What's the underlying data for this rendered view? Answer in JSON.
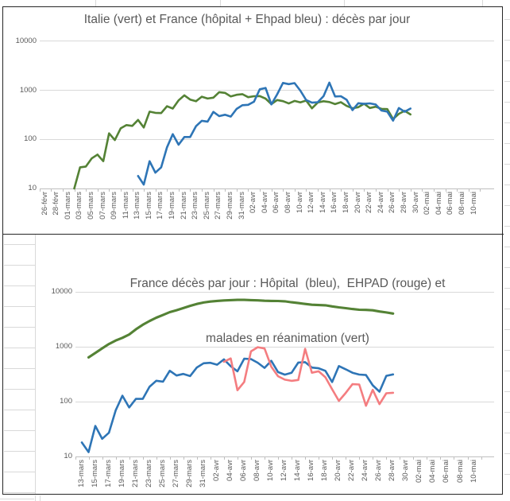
{
  "chart_data": [
    {
      "type": "line",
      "title": "Italie (vert) et France (hôpital + Ehpad bleu) : décès par jour",
      "log_scale": true,
      "ylim": [
        10,
        10000
      ],
      "grid": true,
      "legend": "none (series identified by colors named in title)",
      "y_tick_labels": [
        "10000",
        "1000",
        "100",
        "10"
      ],
      "tick_interval_days": 2,
      "x_tick_labels": [
        "26-févr",
        "28-févr",
        "01-mars",
        "03-mars",
        "05-mars",
        "07-mars",
        "09-mars",
        "11-mars",
        "13-mars",
        "15-mars",
        "17-mars",
        "19-mars",
        "21-mars",
        "23-mars",
        "25-mars",
        "27-mars",
        "29-mars",
        "31-mars",
        "02-avr",
        "04-avr",
        "06-avr",
        "08-avr",
        "10-avr",
        "12-avr",
        "14-avr",
        "16-avr",
        "18-avr",
        "20-avr",
        "22-avr",
        "24-avr",
        "26-avr",
        "28-avr",
        "30-avr",
        "02-mai",
        "04-mai",
        "06-mai",
        "08-mai",
        "10-mai"
      ],
      "series": [
        {
          "name": "Italie décès par jour (vert)",
          "color": "#548235",
          "start_offset_days": 5,
          "values": [
            10,
            27,
            28,
            41,
            49,
            36,
            133,
            97,
            168,
            196,
            189,
            250,
            175,
            368,
            349,
            345,
            475,
            427,
            627,
            793,
            651,
            601,
            743,
            683,
            712,
            919,
            889,
            756,
            812,
            837,
            727,
            760,
            766,
            681,
            525,
            636,
            604,
            542,
            610,
            570,
            619,
            431,
            566,
            602,
            578,
            525,
            575,
            482,
            433,
            454,
            534,
            437,
            464,
            420,
            415,
            260,
            333,
            382,
            323
          ]
        },
        {
          "name": "France hôpital + Ehpad décès par jour (bleu)",
          "color": "#2E75B6",
          "start_offset_days": 16,
          "values": [
            18,
            12,
            36,
            21,
            27,
            69,
            128,
            78,
            112,
            112,
            186,
            240,
            231,
            365,
            299,
            319,
            292,
            418,
            499,
            509,
            588,
            1053,
            1120,
            518,
            833,
            1417,
            1341,
            1408,
            987,
            635,
            561,
            574,
            762,
            1438,
            753,
            761,
            642,
            395,
            547,
            531,
            544,
            516,
            389,
            369,
            242,
            437,
            367,
            427
          ]
        }
      ]
    },
    {
      "type": "line",
      "title_lines": [
        "France décès par jour : Hôpital  (bleu),  EHPAD (rouge) et",
        "malades en réanimation (vert)"
      ],
      "log_scale": true,
      "ylim": [
        10,
        10000
      ],
      "grid": true,
      "legend": "none (series identified by colors named in title)",
      "y_tick_labels": [
        "10000",
        "1000",
        "100",
        "10"
      ],
      "tick_interval_days": 2,
      "x_tick_labels": [
        "13-mars",
        "15-mars",
        "17-mars",
        "19-mars",
        "21-mars",
        "23-mars",
        "25-mars",
        "27-mars",
        "29-mars",
        "31-mars",
        "02-avr",
        "04-avr",
        "06-avr",
        "08-avr",
        "10-avr",
        "12-avr",
        "14-avr",
        "16-avr",
        "18-avr",
        "20-avr",
        "22-avr",
        "24-avr",
        "26-avr",
        "28-avr",
        "30-avr",
        "02-mai",
        "04-mai",
        "06-mai",
        "08-mai",
        "10-mai"
      ],
      "series": [
        {
          "name": "Hôpital décès par jour (bleu)",
          "color": "#2E75B6",
          "start_offset_days": 0,
          "values": [
            18,
            12,
            36,
            21,
            27,
            69,
            128,
            78,
            112,
            112,
            186,
            240,
            231,
            365,
            299,
            319,
            292,
            418,
            499,
            509,
            471,
            588,
            441,
            357,
            605,
            597,
            511,
            412,
            554,
            345,
            310,
            335,
            514,
            524,
            417,
            405,
            364,
            227,
            444,
            387,
            336,
            311,
            305,
            198,
            152,
            295,
            313
          ]
        },
        {
          "name": "EHPAD décès par jour (rouge)",
          "color": "#F47D80",
          "start_offset_days": 21,
          "values": [
            532,
            612,
            161,
            228,
            820,
            981,
            929,
            433,
            290,
            251,
            239,
            248,
            914,
            336,
            356,
            278,
            168,
            103,
            144,
            208,
            205,
            84,
            164,
            90,
            142,
            145
          ]
        },
        {
          "name": "Malades en réanimation (vert)",
          "color": "#548235",
          "start_offset_days": 1,
          "values": [
            640,
            771,
            931,
            1122,
            1297,
            1453,
            1674,
            2080,
            2516,
            2935,
            3375,
            3787,
            4273,
            4632,
            5056,
            5565,
            6017,
            6399,
            6662,
            6838,
            6978,
            7072,
            7131,
            7148,
            7066,
            7004,
            6883,
            6845,
            6821,
            6730,
            6457,
            6248,
            6027,
            5833,
            5744,
            5683,
            5433,
            5218,
            5053,
            4870,
            4725,
            4682,
            4608,
            4387,
            4207,
            4019
          ]
        }
      ]
    }
  ],
  "colors": {
    "green_series": "#548235",
    "blue_series": "#2E75B6",
    "red_series": "#F47D80",
    "gridline": "#D9D9D9",
    "axis_text": "#595959",
    "chart_frame": "#262626"
  }
}
